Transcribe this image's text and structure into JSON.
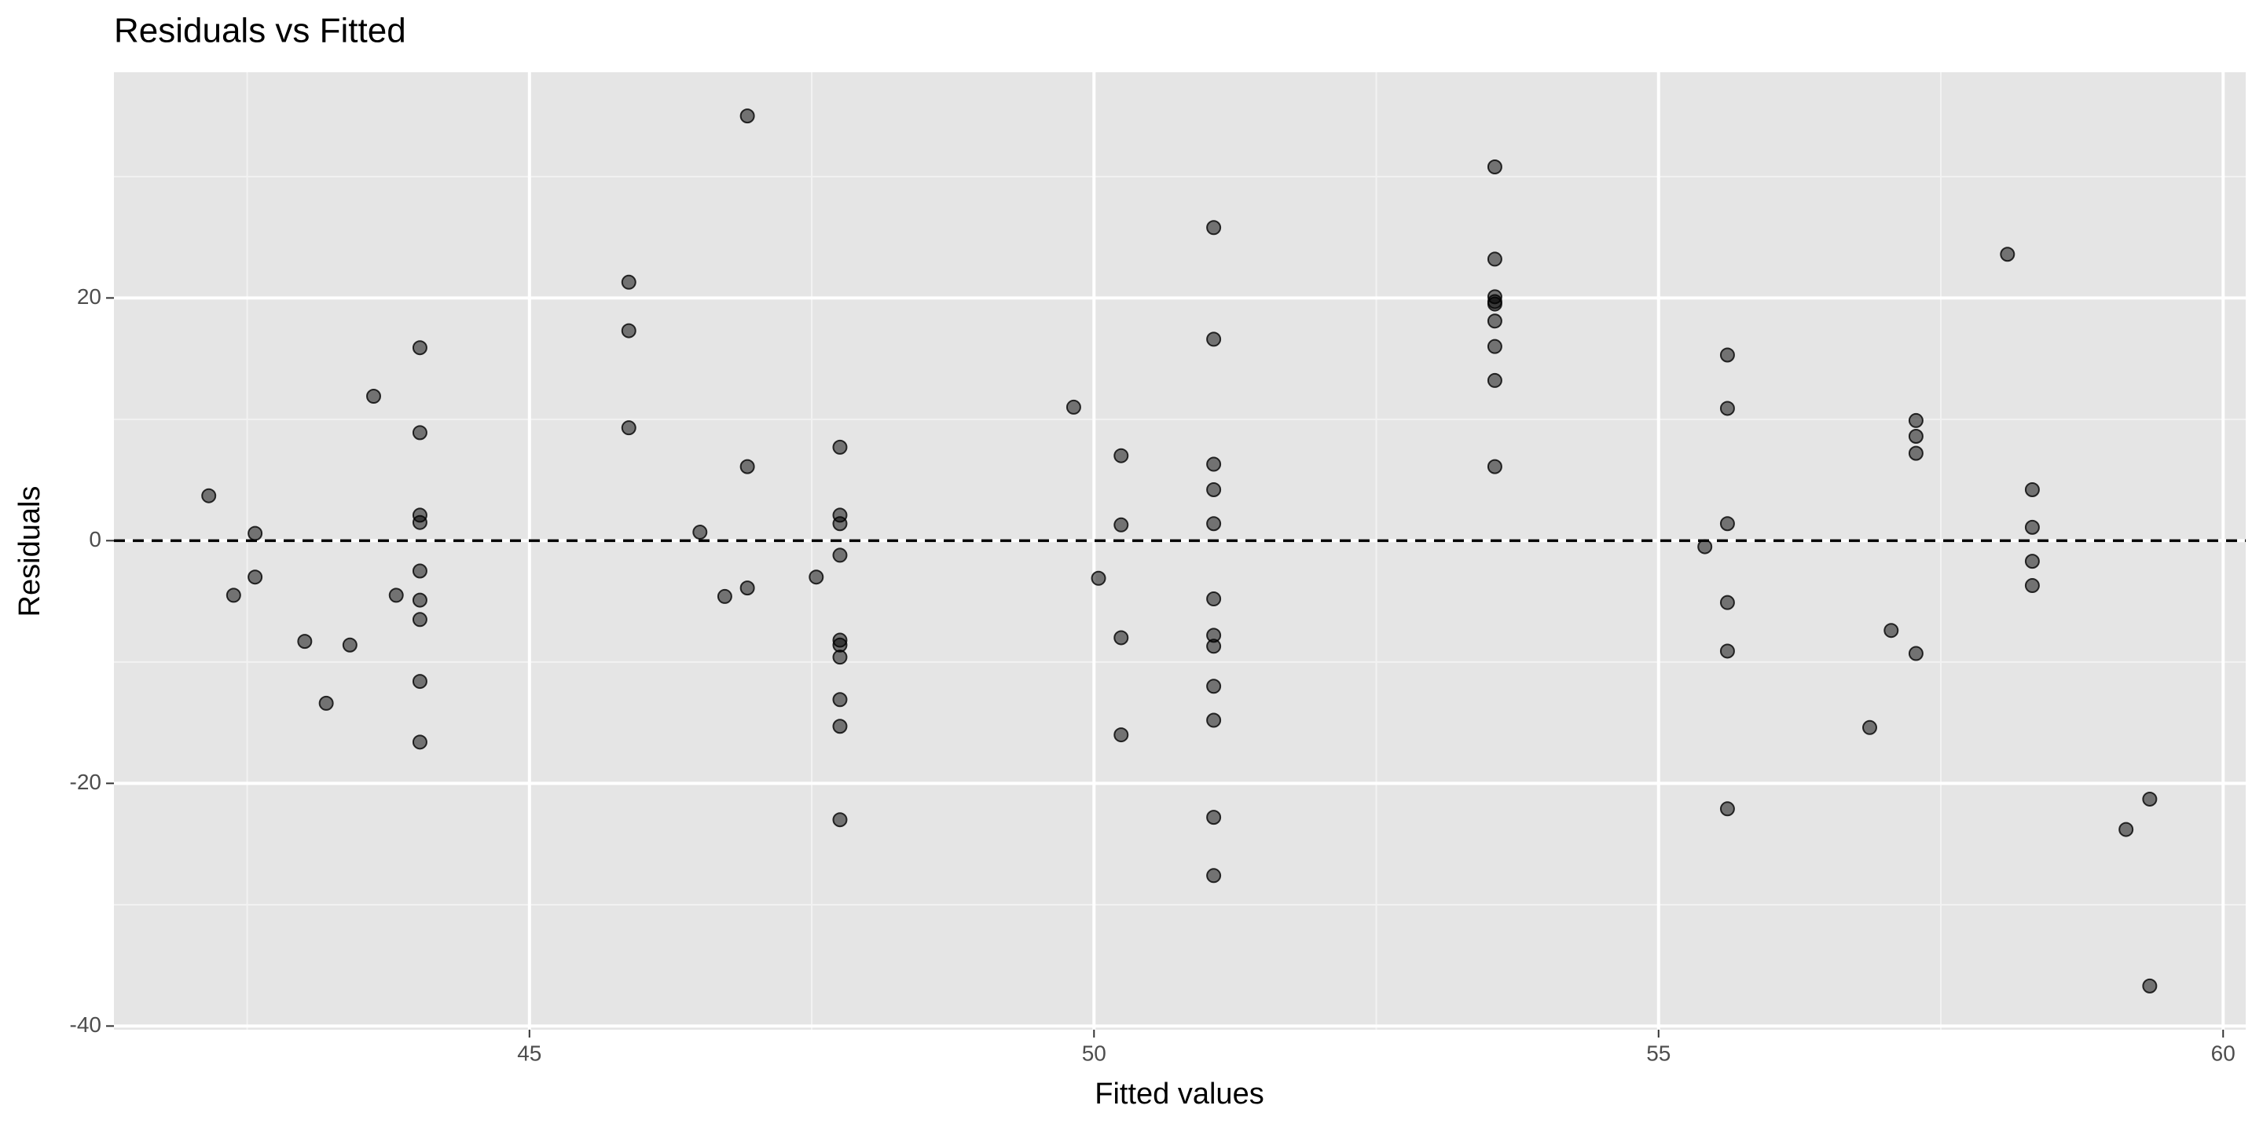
{
  "chart_data": {
    "type": "scatter",
    "title": "Residuals vs Fitted",
    "x_label": "Fitted values",
    "y_label": "Residuals",
    "x": [
      42.16,
      42.38,
      42.57,
      42.57,
      43.01,
      43.2,
      43.41,
      43.62,
      43.82,
      44.03,
      44.03,
      44.03,
      44.03,
      44.03,
      44.03,
      44.03,
      44.03,
      44.03,
      45.88,
      45.88,
      45.88,
      46.51,
      46.73,
      46.93,
      46.93,
      46.93,
      47.54,
      47.75,
      47.75,
      47.75,
      47.75,
      47.75,
      47.75,
      47.75,
      47.75,
      47.75,
      47.75,
      49.82,
      50.04,
      50.24,
      50.24,
      50.24,
      50.24,
      51.06,
      51.06,
      51.06,
      51.06,
      51.06,
      51.06,
      51.06,
      51.06,
      51.06,
      51.06,
      51.06,
      51.06,
      53.55,
      53.55,
      53.55,
      53.55,
      53.55,
      53.55,
      53.55,
      53.55,
      53.55,
      55.41,
      55.61,
      55.61,
      55.61,
      55.61,
      55.61,
      55.61,
      56.87,
      57.06,
      57.28,
      57.28,
      57.28,
      57.28,
      58.09,
      58.31,
      58.31,
      58.31,
      58.31,
      59.14,
      59.35,
      59.35
    ],
    "y": [
      3.7,
      -4.5,
      0.6,
      -3.0,
      -8.3,
      -13.4,
      -8.6,
      11.9,
      -4.5,
      15.9,
      8.9,
      2.1,
      1.5,
      -2.5,
      -4.9,
      -6.5,
      -11.6,
      -16.6,
      21.3,
      17.3,
      9.3,
      0.7,
      -4.6,
      35.0,
      6.1,
      -3.9,
      -3.0,
      7.7,
      2.1,
      1.4,
      -1.2,
      -8.2,
      -8.6,
      -9.6,
      -13.1,
      -15.3,
      -23.0,
      11.0,
      -3.1,
      7.0,
      1.3,
      -8.0,
      -16.0,
      25.8,
      16.6,
      6.3,
      4.2,
      1.4,
      -4.8,
      -7.8,
      -8.7,
      -12.0,
      -14.8,
      -22.8,
      -27.6,
      30.8,
      23.2,
      20.1,
      19.7,
      19.5,
      18.1,
      16.0,
      13.2,
      6.1,
      -0.5,
      15.3,
      10.9,
      1.4,
      -5.1,
      -9.1,
      -22.1,
      -15.4,
      -7.4,
      9.9,
      8.6,
      7.2,
      -9.3,
      23.6,
      4.2,
      1.1,
      -1.7,
      -3.7,
      -23.8,
      -21.3,
      -36.7
    ],
    "color": "#000000",
    "alpha": 0.5,
    "xlim": [
      41.32,
      60.2
    ],
    "ylim": [
      -40.3,
      38.6
    ],
    "xticks": [
      45,
      50,
      55,
      60
    ],
    "yticks": [
      -40,
      -20,
      0,
      20
    ],
    "x_minor_ticks": [
      42.5,
      47.5,
      52.5,
      57.5
    ],
    "y_minor_ticks": [
      -30,
      -10,
      10,
      30
    ],
    "grid": true,
    "reference_line": {
      "y": 0,
      "linestyle": "dashed",
      "color": "#000000"
    }
  }
}
